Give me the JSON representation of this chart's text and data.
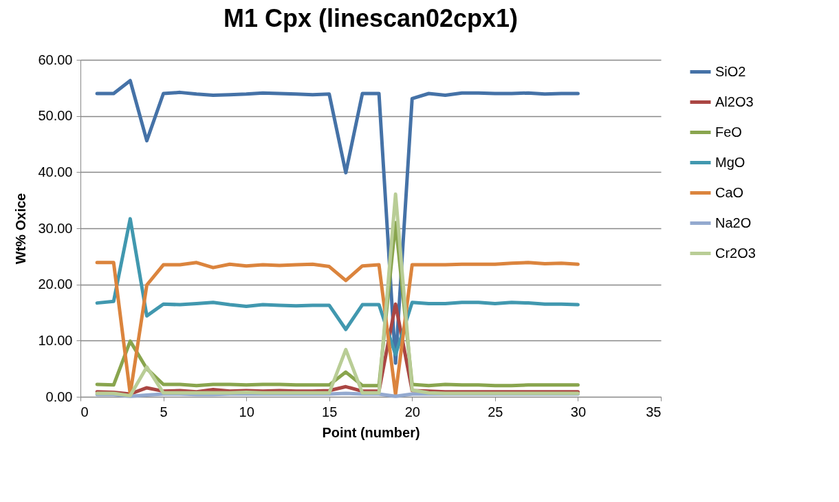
{
  "chart_data": {
    "type": "line",
    "title": "M1 Cpx (linescan02cpx1)",
    "xlabel": "Point (number)",
    "ylabel": "Wt% Oxice",
    "x": [
      1,
      2,
      3,
      4,
      5,
      6,
      7,
      8,
      9,
      10,
      11,
      12,
      13,
      14,
      15,
      16,
      17,
      18,
      19,
      20,
      21,
      22,
      23,
      24,
      25,
      26,
      27,
      28,
      29,
      30
    ],
    "xlim": [
      0,
      35
    ],
    "xticks": [
      0,
      5,
      10,
      15,
      20,
      25,
      30,
      35
    ],
    "ylim": [
      0,
      60
    ],
    "yticks": [
      {
        "value": 0,
        "label": "0.00"
      },
      {
        "value": 10,
        "label": "10.00"
      },
      {
        "value": 20,
        "label": "20.00"
      },
      {
        "value": 30,
        "label": "30.00"
      },
      {
        "value": 40,
        "label": "40.00"
      },
      {
        "value": 50,
        "label": "50.00"
      },
      {
        "value": 60,
        "label": "60.00"
      }
    ],
    "grid": "y",
    "legend": "right",
    "marker": "none",
    "line_style": "solid",
    "series": [
      {
        "name": "SiO2",
        "color": "#4572a7",
        "values": [
          54.0,
          54.0,
          56.3,
          45.6,
          54.0,
          54.2,
          53.9,
          53.7,
          53.8,
          53.9,
          54.1,
          54.0,
          53.9,
          53.8,
          53.9,
          39.9,
          54.0,
          54.0,
          6.0,
          53.1,
          54.0,
          53.7,
          54.1,
          54.1,
          54.0,
          54.0,
          54.1,
          53.9,
          54.0,
          54.0
        ]
      },
      {
        "name": "Al2O3",
        "color": "#aa4643",
        "values": [
          0.9,
          0.8,
          0.5,
          1.6,
          1.0,
          1.1,
          0.9,
          1.3,
          1.0,
          1.1,
          1.0,
          1.1,
          1.0,
          1.0,
          1.1,
          1.8,
          1.0,
          1.0,
          16.5,
          1.1,
          1.0,
          0.9,
          0.9,
          0.9,
          0.9,
          0.9,
          0.9,
          0.9,
          0.9,
          0.9
        ]
      },
      {
        "name": "FeO",
        "color": "#89a54e",
        "values": [
          2.2,
          2.1,
          9.9,
          5.0,
          2.2,
          2.2,
          2.0,
          2.2,
          2.2,
          2.1,
          2.2,
          2.2,
          2.1,
          2.1,
          2.1,
          4.4,
          2.0,
          2.0,
          31.0,
          2.2,
          2.0,
          2.2,
          2.1,
          2.1,
          2.0,
          2.0,
          2.1,
          2.1,
          2.1,
          2.1
        ]
      },
      {
        "name": "MgO",
        "color": "#4198af",
        "values": [
          16.7,
          17.0,
          31.7,
          14.4,
          16.5,
          16.4,
          16.6,
          16.8,
          16.4,
          16.1,
          16.4,
          16.3,
          16.2,
          16.3,
          16.3,
          12.0,
          16.4,
          16.4,
          7.5,
          16.8,
          16.6,
          16.6,
          16.8,
          16.8,
          16.6,
          16.8,
          16.7,
          16.5,
          16.5,
          16.4
        ]
      },
      {
        "name": "CaO",
        "color": "#db843d",
        "values": [
          23.9,
          23.9,
          0.5,
          19.9,
          23.5,
          23.5,
          23.9,
          23.0,
          23.6,
          23.3,
          23.5,
          23.4,
          23.5,
          23.6,
          23.2,
          20.7,
          23.3,
          23.5,
          0.4,
          23.5,
          23.5,
          23.5,
          23.6,
          23.6,
          23.6,
          23.8,
          23.9,
          23.7,
          23.8,
          23.6
        ]
      },
      {
        "name": "Na2O",
        "color": "#93a9cf",
        "values": [
          0.4,
          0.4,
          0.1,
          0.3,
          0.5,
          0.5,
          0.4,
          0.4,
          0.5,
          0.5,
          0.5,
          0.5,
          0.5,
          0.5,
          0.5,
          0.6,
          0.5,
          0.5,
          0.1,
          0.5,
          0.5,
          0.5,
          0.5,
          0.5,
          0.5,
          0.5,
          0.5,
          0.5,
          0.5,
          0.5
        ]
      },
      {
        "name": "Cr2O3",
        "color": "#b9cd96",
        "values": [
          0.6,
          0.6,
          0.2,
          5.3,
          0.7,
          0.7,
          0.7,
          0.7,
          0.7,
          0.8,
          0.7,
          0.7,
          0.7,
          0.7,
          0.7,
          8.4,
          0.7,
          0.7,
          36.1,
          1.2,
          0.7,
          0.6,
          0.6,
          0.6,
          0.6,
          0.6,
          0.6,
          0.6,
          0.6,
          0.6
        ]
      }
    ]
  }
}
